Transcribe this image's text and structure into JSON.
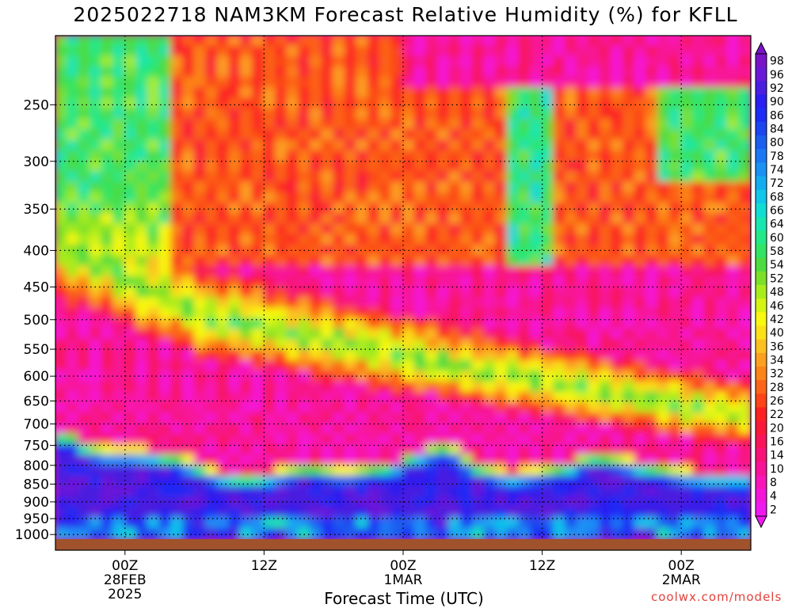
{
  "chart_data": {
    "type": "heatmap",
    "title": "2025022718 NAM3KM Forecast Relative Humidity (%) for KFLL",
    "xlabel": "Forecast Time (UTC)",
    "ylabel": "",
    "credit": "coolwx.com/models",
    "x_ticks": [
      {
        "hour": 6,
        "line1": "00Z",
        "line2": "28FEB",
        "line3": "2025"
      },
      {
        "hour": 18,
        "line1": "12Z",
        "line2": "",
        "line3": ""
      },
      {
        "hour": 30,
        "line1": "00Z",
        "line2": "1MAR",
        "line3": ""
      },
      {
        "hour": 42,
        "line1": "12Z",
        "line2": "",
        "line3": ""
      },
      {
        "hour": 54,
        "line1": "00Z",
        "line2": "2MAR",
        "line3": ""
      }
    ],
    "xlim_hours": [
      0,
      60
    ],
    "y_ticks": [
      250,
      300,
      350,
      400,
      450,
      500,
      550,
      600,
      650,
      700,
      750,
      800,
      850,
      900,
      950,
      1000
    ],
    "ylim_hPa": [
      200,
      1015
    ],
    "y_scale": "log",
    "grid": true,
    "colorbar_levels": [
      98,
      96,
      92,
      90,
      86,
      84,
      80,
      78,
      74,
      72,
      68,
      66,
      64,
      60,
      58,
      54,
      52,
      48,
      46,
      42,
      40,
      36,
      34,
      32,
      28,
      26,
      22,
      20,
      16,
      14,
      10,
      8,
      4,
      2
    ],
    "colorbar_colors": [
      "#7a12c8",
      "#6a18d8",
      "#4a1ee0",
      "#2a1ef0",
      "#1c2cf5",
      "#1a45f0",
      "#1a5ef0",
      "#1a78f5",
      "#1a92f5",
      "#14acf0",
      "#10c6ea",
      "#10dcd4",
      "#18e6b0",
      "#22e888",
      "#32e464",
      "#4cdc40",
      "#7ce028",
      "#a8ec1c",
      "#d4f414",
      "#f8f810",
      "#fce018",
      "#fcc020",
      "#fca020",
      "#fc8418",
      "#fc6418",
      "#fc4418",
      "#fc2020",
      "#fa1838",
      "#f81458",
      "#f81278",
      "#f81298",
      "#f814b8",
      "#f416d8",
      "#f018f0"
    ],
    "ground_color": "#a0522d",
    "series": [
      {
        "layer": "boundary_layer",
        "moist_top_hPa": [
          755,
          760,
          780,
          795,
          800,
          800,
          800,
          805,
          810,
          820,
          835,
          850,
          860,
          865,
          865,
          860,
          850,
          845,
          840,
          845,
          850,
          850,
          845,
          840,
          830,
          810,
          800,
          790,
          790,
          820,
          840,
          850,
          860,
          855,
          850,
          845,
          840,
          820,
          810,
          815,
          820,
          830,
          840,
          845,
          850,
          855,
          860,
          860,
          860,
          860
        ]
      },
      {
        "layer": "midlevel_moist_band",
        "center_hPa_per_hour": [
          400,
          405,
          410,
          420,
          430,
          440,
          450,
          460,
          470,
          480,
          490,
          500,
          505,
          505,
          510,
          515,
          520,
          525,
          530,
          535,
          540,
          545,
          550,
          555,
          560,
          565,
          570,
          575,
          580,
          585,
          590,
          595,
          600,
          605,
          610,
          615,
          620,
          625,
          630,
          635,
          640,
          645,
          650,
          655,
          660,
          665,
          670,
          675,
          680,
          680
        ]
      }
    ]
  }
}
